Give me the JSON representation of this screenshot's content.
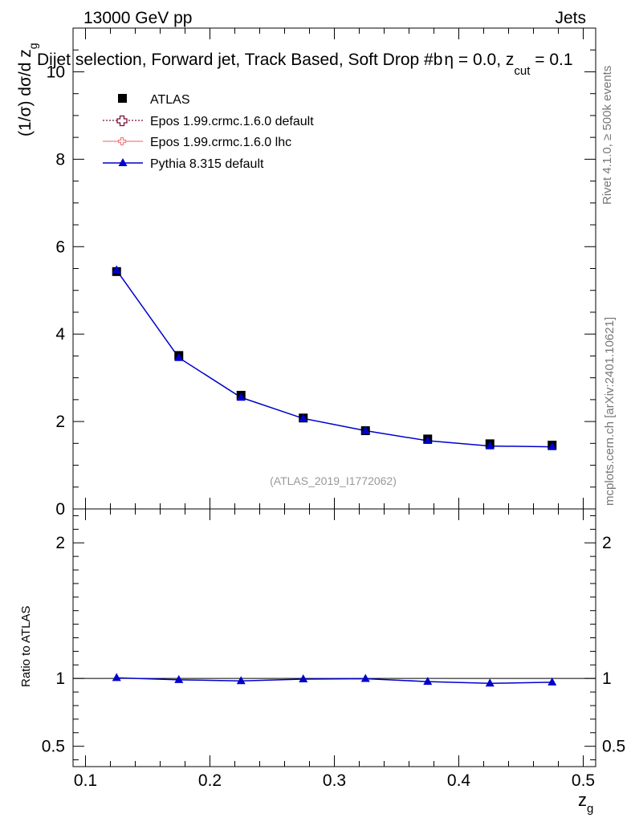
{
  "header": {
    "energy": "13000 GeV pp",
    "category": "Jets",
    "title": "Dijet selection, Forward jet, Track Based, Soft Drop #b",
    "title_tail": "η = 0.0, z",
    "title_sub": "cut",
    "title_end": " = 0.1"
  },
  "side_labels": {
    "rivet": "Rivet 4.1.0, ≥ 500k events",
    "mcplots": "mcplots.cern.ch [arXiv:2401.10621]"
  },
  "watermark": "(ATLAS_2019_I1772062)",
  "legend": {
    "entries": [
      {
        "label": "ATLAS",
        "color": "#000000",
        "style": "square"
      },
      {
        "label": "Epos 1.99.crmc.1.6.0 default",
        "color": "#7a1030",
        "style": "dotted-cross"
      },
      {
        "label": "Epos 1.99.crmc.1.6.0 lhc",
        "color": "#f08080",
        "style": "solid-cross"
      },
      {
        "label": "Pythia 8.315 default",
        "color": "#0000cc",
        "style": "triangle"
      }
    ]
  },
  "chart_data": {
    "type": "scatter",
    "title": "Dijet selection, Forward jet, Track Based, Soft Drop #b = 0.0, z_cut = 0.1",
    "xlabel": "z_g",
    "ylabel_parts": {
      "main": "(1/σ) dσ/d z",
      "sub": "g"
    },
    "xlabel_parts": {
      "main": "z",
      "sub": "g"
    },
    "xlim": [
      0.09,
      0.51
    ],
    "ylim": [
      0,
      11
    ],
    "x_ticks": [
      "0.1",
      "0.2",
      "0.3",
      "0.4",
      "0.5"
    ],
    "y_ticks": [
      "0",
      "2",
      "4",
      "6",
      "8",
      "10"
    ],
    "x": [
      0.125,
      0.175,
      0.225,
      0.275,
      0.325,
      0.375,
      0.425,
      0.475
    ],
    "series": [
      {
        "name": "ATLAS",
        "values": [
          5.43,
          3.51,
          2.6,
          2.08,
          1.79,
          1.6,
          1.49,
          1.46
        ]
      },
      {
        "name": "Pythia 8.315 default",
        "values": [
          5.46,
          3.46,
          2.55,
          2.07,
          1.79,
          1.56,
          1.44,
          1.42
        ]
      }
    ],
    "ratio": {
      "ylabel": "Ratio to ATLAS",
      "ylim": [
        0.35,
        2.25
      ],
      "y_ticks": [
        "0.5",
        "1",
        "2"
      ],
      "series": [
        {
          "name": "Pythia 8.315 default",
          "values": [
            1.005,
            0.99,
            0.982,
            0.995,
            0.998,
            0.977,
            0.964,
            0.972
          ]
        }
      ]
    }
  }
}
